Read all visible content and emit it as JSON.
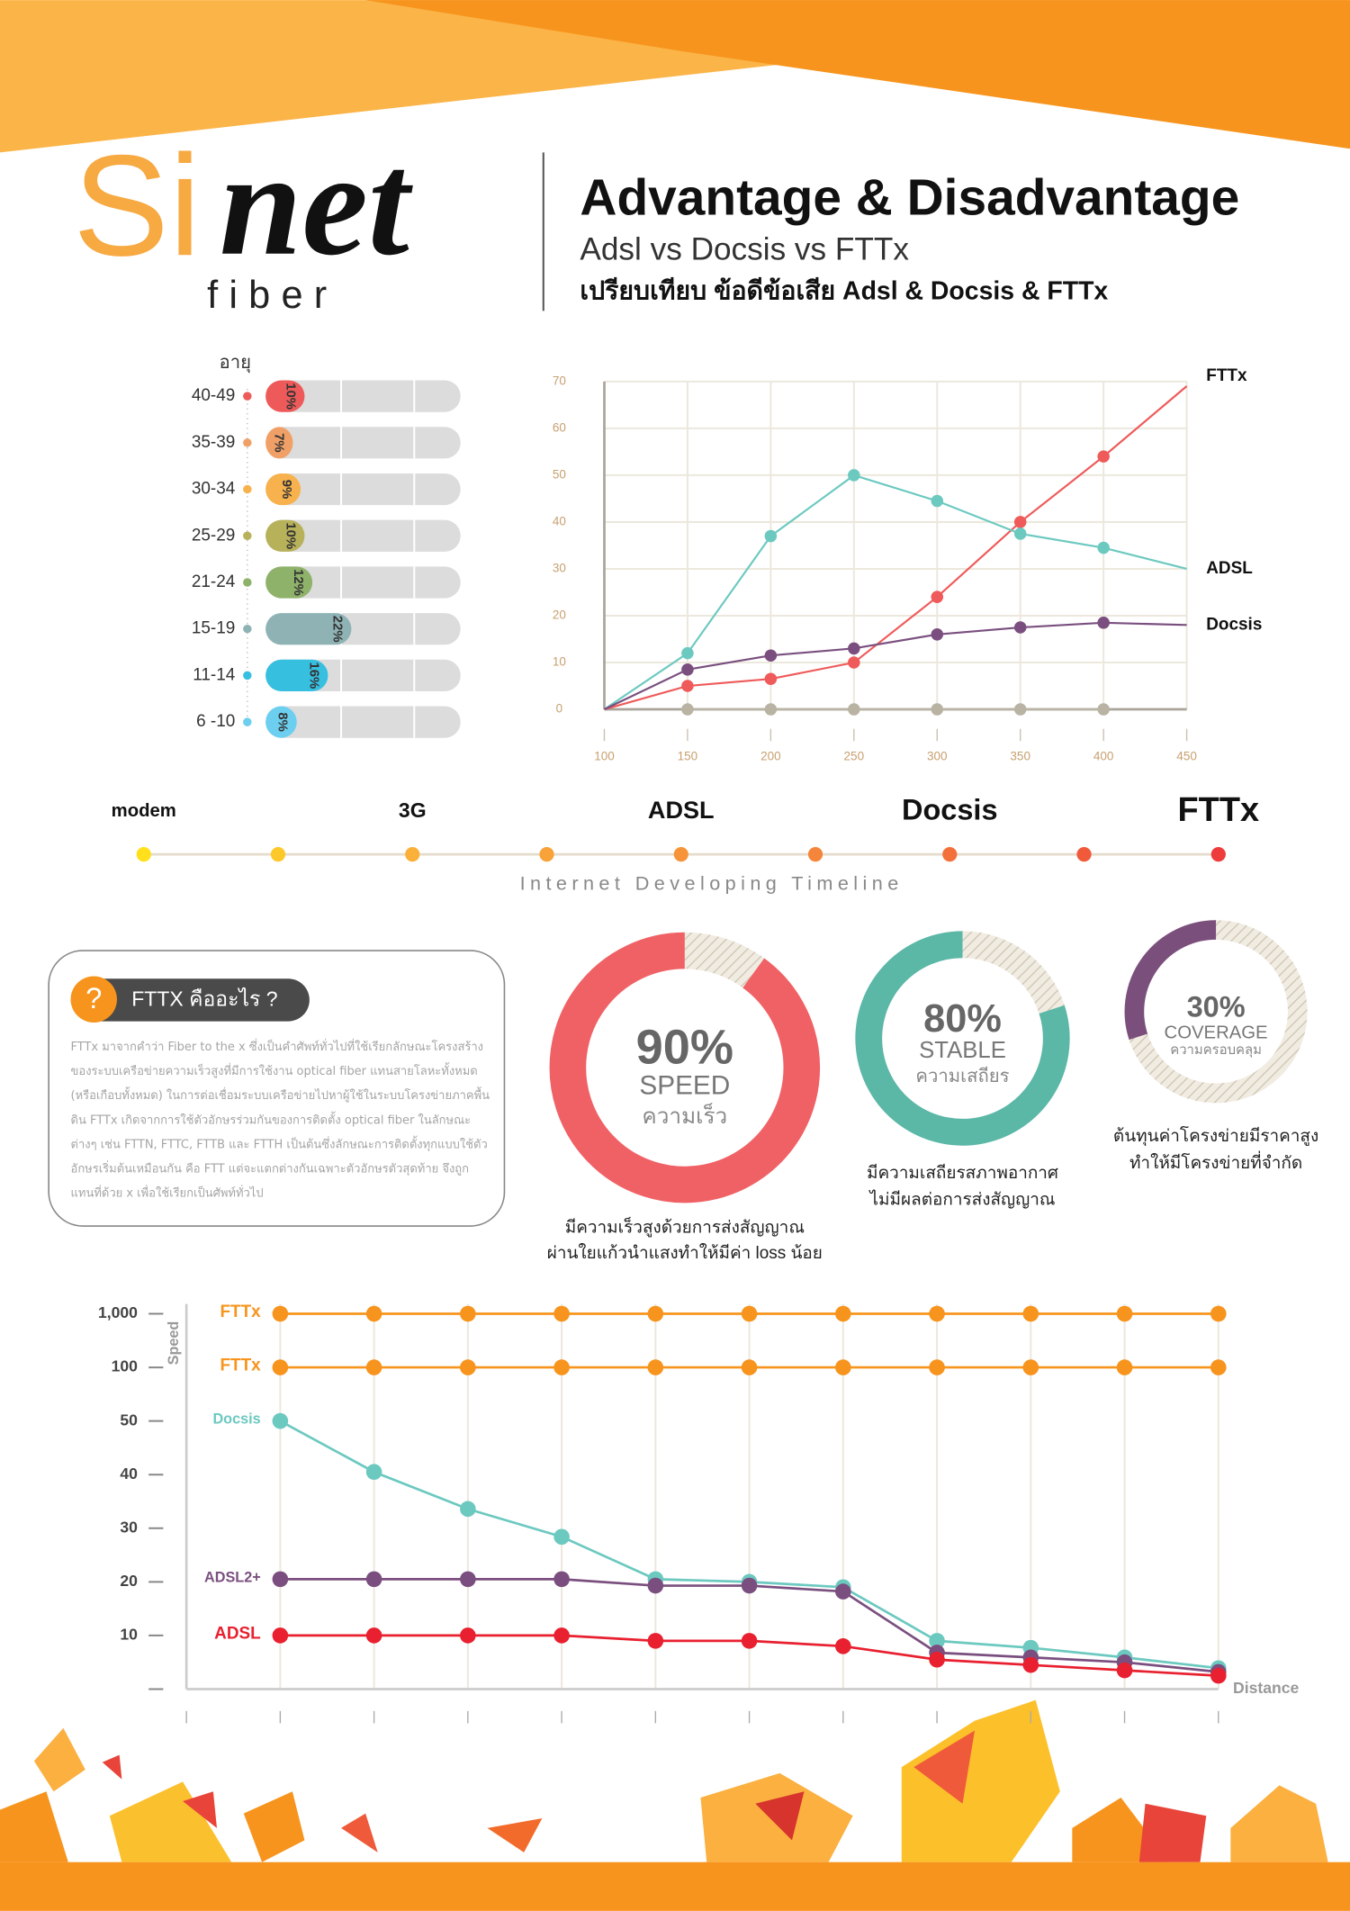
{
  "header": {
    "logo_si": "Si",
    "logo_net": "net",
    "logo_fiber": "fiber",
    "title": "Advantage & Disadvantage",
    "subtitle": "Adsl vs Docsis vs FTTx",
    "subtitle_th": "เปรียบเทียบ ข้อดีข้อเสีย Adsl & Docsis & FTTx"
  },
  "timeline": {
    "labels": [
      "modem",
      "3G",
      "ADSL",
      "Docsis",
      "FTTx"
    ],
    "caption": "Internet Developing Timeline"
  },
  "info_box": {
    "title": "FTTX คืออะไร ?",
    "icon": "?",
    "text": "FTTx มาจากคำว่า Fiber to the x ซึ่งเป็นคำศัพท์ทั่วไปที่ใช้เรียกลักษณะโครงสร้างของระบบเครือข่ายความเร็วสูงที่มีการใช้งาน optical fiber แทนสายโลหะทั้งหมด (หรือเกือบทั้งหมด) ในการต่อเชื่อมระบบเครือข่ายไปหาผู้ใช้ในระบบโครงข่ายภาคพื้นดิน FTTx เกิดจากการใช้ตัวอักษรร่วมกันของการติดตั้ง optical fiber ในลักษณะต่างๆ เช่น FTTN, FTTC, FTTB และ FTTH เป็นต้นซึ่งลักษณะการติดตั้งทุกแบบใช้ตัวอักษรเริ่มต้นเหมือนกัน คือ FTT แต่จะแตกต่างกันเฉพาะตัวอักษรตัวสุดท้าย จึงถูกแทนที่ด้วย x เพื่อใช้เรียกเป็นศัพท์ทั่วไป"
  },
  "chart_data": [
    {
      "type": "bar",
      "horizontal": true,
      "title": "อายุ",
      "categories": [
        "40-49",
        "35-39",
        "30-34",
        "25-29",
        "21-24",
        "15-19",
        "11-14",
        "6 -10"
      ],
      "values": [
        10,
        7,
        9,
        10,
        12,
        22,
        16,
        8
      ],
      "value_labels": [
        "10%",
        "7%",
        "9%",
        "10%",
        "12%",
        "22%",
        "16%",
        "8%"
      ],
      "colors": [
        "#ee5a5a",
        "#f0a067",
        "#f7b24d",
        "#b7b15a",
        "#8fb26a",
        "#8fb3b5",
        "#37bfe0",
        "#6dcff0"
      ],
      "xlim": [
        0,
        50
      ]
    },
    {
      "type": "line",
      "x": [
        100,
        150,
        200,
        250,
        300,
        350,
        400,
        450
      ],
      "xlim": [
        100,
        450
      ],
      "xticks": [
        100,
        150,
        200,
        250,
        300,
        350,
        400,
        450
      ],
      "ylim": [
        0,
        70
      ],
      "yticks": [
        0,
        10,
        20,
        30,
        40,
        50,
        60,
        70
      ],
      "grid": true,
      "series": [
        {
          "name": "FTTx",
          "color": "#ef5a5a",
          "values": [
            0,
            5,
            6.5,
            10,
            24,
            40,
            54,
            69
          ]
        },
        {
          "name": "ADSL",
          "color": "#6cc9c0",
          "values": [
            0,
            12,
            37,
            50,
            44.5,
            37.5,
            34.5,
            30
          ]
        },
        {
          "name": "Docsis",
          "color": "#7a4f7f",
          "values": [
            0,
            8.5,
            11.5,
            13,
            16,
            17.5,
            18.5,
            18
          ]
        },
        {
          "color": "#b9b3a3",
          "values": [
            null,
            0,
            0,
            0,
            0,
            0,
            0,
            null
          ]
        }
      ]
    },
    {
      "type": "donut",
      "values": [
        90
      ],
      "value_labels": [
        "90%"
      ],
      "label": "SPEED",
      "sublabel": "ความเร็ว",
      "color": "#f06165",
      "caption": [
        "มีความเร็วสูงด้วยการส่งสัญญาณ",
        "ผ่านใยแก้วนำแสงทำให้มีค่า loss น้อย"
      ]
    },
    {
      "type": "donut",
      "values": [
        80
      ],
      "value_labels": [
        "80%"
      ],
      "label": "STABLE",
      "sublabel": "ความเสถียร",
      "color": "#5bb7a6",
      "caption": [
        "มีความเสถียรสภาพอากาศ",
        "ไม่มีผลต่อการส่งสัญญาณ"
      ]
    },
    {
      "type": "donut",
      "values": [
        30
      ],
      "value_labels": [
        "30%"
      ],
      "label": "COVERAGE",
      "sublabel": "ความครอบคลุม",
      "color": "#7b4f7c",
      "caption": [
        "ต้นทุนค่าโครงข่ายมีราคาสูง",
        "ทำให้มีโครงข่ายที่จำกัด"
      ]
    },
    {
      "type": "line",
      "categories": [
        null,
        null,
        null,
        null,
        null,
        null,
        null,
        null,
        null,
        null,
        null
      ],
      "ylabel": "Speed",
      "xlabel": "Distance",
      "ylim": [
        0,
        1000
      ],
      "yticks": [
        10,
        20,
        30,
        40,
        50,
        100,
        {
          "value": 1000,
          "label": "1,000"
        }
      ],
      "series": [
        {
          "name": "FTTx",
          "color": "#f7941d",
          "values": [
            1000,
            1000,
            1000,
            1000,
            1000,
            1000,
            1000,
            1000,
            1000,
            1000,
            1000
          ]
        },
        {
          "name": "FTTx",
          "color": "#f7941d",
          "values": [
            100,
            100,
            100,
            100,
            100,
            100,
            100,
            100,
            100,
            100,
            100
          ]
        },
        {
          "name": "Docsis",
          "color": "#6cc9c0",
          "values": [
            50,
            40.5,
            33.6,
            28.4,
            20.5,
            20,
            19,
            9,
            7.7,
            5.9,
            3.9
          ]
        },
        {
          "name": "ADSL2+",
          "color": "#7a4f7f",
          "values": [
            20.5,
            20.5,
            20.5,
            20.5,
            19.3,
            19.3,
            18.2,
            6.8,
            5.9,
            5,
            3.2
          ]
        },
        {
          "name": "ADSL",
          "color": "#e8202f",
          "values": [
            10,
            10,
            10,
            10,
            9,
            9,
            8,
            5.5,
            4.5,
            3.5,
            2.5
          ]
        }
      ]
    }
  ]
}
